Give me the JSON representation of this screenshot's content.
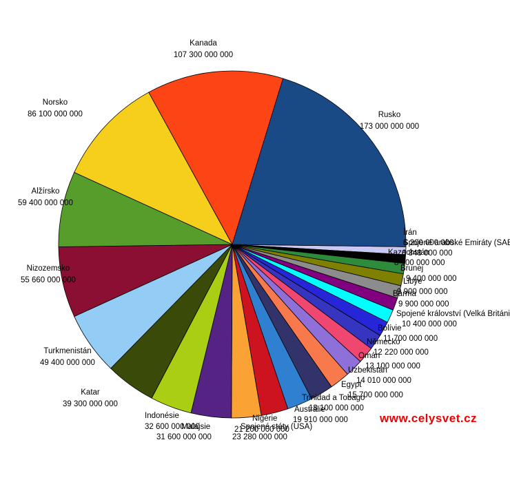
{
  "page": {
    "background": "#FFFFFF"
  },
  "watermark": {
    "text": "www.celysvet.cz",
    "color": "#EE0000"
  },
  "chart_data": {
    "type": "pie",
    "title": "",
    "legend_position": "none",
    "labels_style": "name above value, space-separated thousands, outside slices",
    "order": "descending clockwise from top, smallest slices between largest (Rusko) and Írán",
    "series": [
      {
        "name": "Rusko",
        "value": 173000000000,
        "display_value": "173 000 000 000",
        "color": "#1A4A85"
      },
      {
        "name": "Kanada",
        "value": 107300000000,
        "display_value": "107 300 000 000",
        "color": "#FC4414"
      },
      {
        "name": "Norsko",
        "value": 86100000000,
        "display_value": "86 100 000 000",
        "color": "#F5CF1C"
      },
      {
        "name": "Alžírsko",
        "value": 59400000000,
        "display_value": "59 400 000 000",
        "color": "#579D2C"
      },
      {
        "name": "Nizozemsko",
        "value": 55660000000,
        "display_value": "55 660 000 000",
        "color": "#8B0E33"
      },
      {
        "name": "Turkmenistán",
        "value": 49400000000,
        "display_value": "49 400 000 000",
        "color": "#93CCF5"
      },
      {
        "name": "Katar",
        "value": 39300000000,
        "display_value": "39 300 000 000",
        "color": "#3A4A08"
      },
      {
        "name": "Indonésie",
        "value": 32600000000,
        "display_value": "32 600 000 000",
        "color": "#A9CE13"
      },
      {
        "name": "Malajsie",
        "value": 31600000000,
        "display_value": "31 600 000 000",
        "color": "#542383"
      },
      {
        "name": "Spojené státy (USA)",
        "value": 23280000000,
        "display_value": "23 280 000 000",
        "color": "#FBA235"
      },
      {
        "name": "Nigérie",
        "value": 21200000000,
        "display_value": "21 200 000 000",
        "color": "#CD1220"
      },
      {
        "name": "Austrálie",
        "value": 19910000000,
        "display_value": "19 910 000 000",
        "color": "#2F80D0"
      },
      {
        "name": "Trinidad a Tobago",
        "value": 18100000000,
        "display_value": "18 100 000 000",
        "color": "#33336B"
      },
      {
        "name": "Egypt",
        "value": 15700000000,
        "display_value": "15 700 000 000",
        "color": "#F87A4C"
      },
      {
        "name": "Uzbekistán",
        "value": 14010000000,
        "display_value": "14 010 000 000",
        "color": "#8F6FD8"
      },
      {
        "name": "Omán",
        "value": 13100000000,
        "display_value": "13 100 000 000",
        "color": "#EF476F"
      },
      {
        "name": "Německo",
        "value": 12220000000,
        "display_value": "12 220 000 000",
        "color": "#3535C0"
      },
      {
        "name": "Bolívie",
        "value": 11700000000,
        "display_value": "11 700 000 000",
        "color": "#2626D8"
      },
      {
        "name": "Spojené království (Velká Británie)",
        "value": 10400000000,
        "display_value": "10 400 000 000",
        "color": "#00FFFF"
      },
      {
        "name": "Barma",
        "value": 9900000000,
        "display_value": "9 900 000 000",
        "color": "#800080"
      },
      {
        "name": "Libye",
        "value": 9900000000,
        "display_value": "9 900 000 000",
        "color": "#8C8C8C"
      },
      {
        "name": "Brunej",
        "value": 9400000000,
        "display_value": "9 400 000 000",
        "color": "#7F7F00"
      },
      {
        "name": "Kazachstán",
        "value": 8100000000,
        "display_value": "8 100 000 000",
        "color": "#2F8B3C"
      },
      {
        "name": "Spojené arabské Emiráty (SAE)",
        "value": 6848000000,
        "display_value": "6 848 000 000",
        "color": "#000000"
      },
      {
        "name": "Írán",
        "value": 6200000000,
        "display_value": "6 200 000 000",
        "color": "#C8C8F2"
      }
    ]
  }
}
